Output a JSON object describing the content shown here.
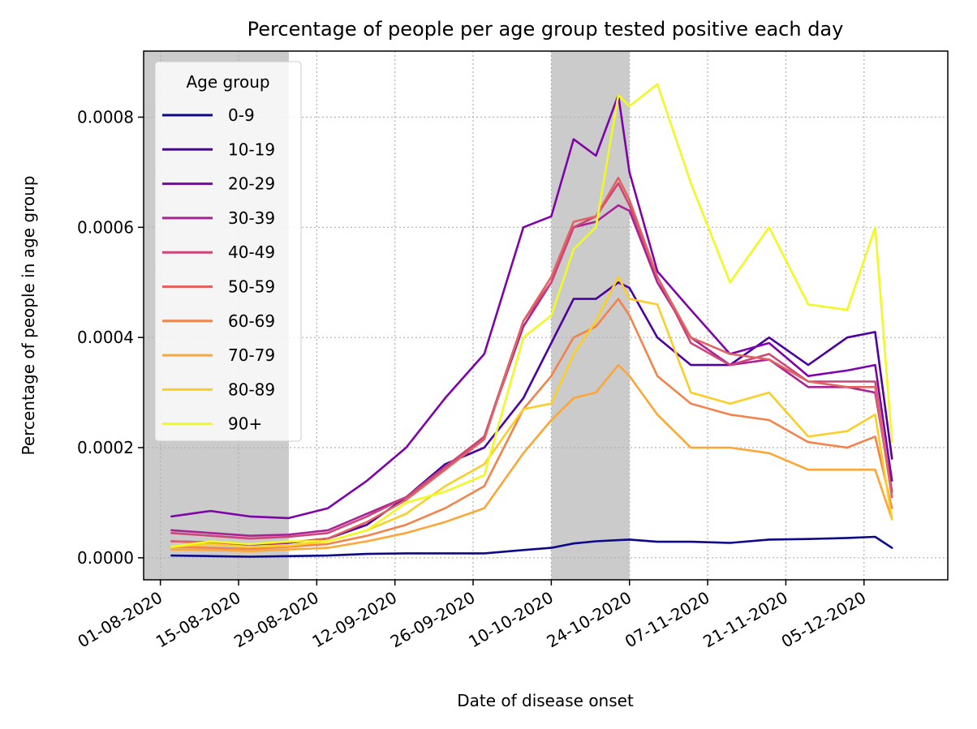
{
  "chart_data": {
    "type": "line",
    "title": "Percentage of people per age group tested positive each day",
    "xlabel": "Date of disease onset",
    "ylabel": "Percentage of people in age group",
    "legend_title": "Age group",
    "legend_position": "upper-left",
    "grid": "dotted",
    "x_start_date": "2020-08-01",
    "xlim": [
      "2020-07-29",
      "2020-12-20"
    ],
    "ylim": [
      -4e-05,
      0.00092
    ],
    "x_ticks": [
      "01-08-2020",
      "15-08-2020",
      "29-08-2020",
      "12-09-2020",
      "26-09-2020",
      "10-10-2020",
      "24-10-2020",
      "07-11-2020",
      "21-11-2020",
      "05-12-2020"
    ],
    "y_ticks": [
      "0.0000",
      "0.0002",
      "0.0004",
      "0.0006",
      "0.0008"
    ],
    "shaded_periods": [
      {
        "start": "2020-07-29",
        "end": "2020-08-24"
      },
      {
        "start": "2020-10-10",
        "end": "2020-10-24"
      }
    ],
    "x": [
      "2020-08-03",
      "2020-08-10",
      "2020-08-17",
      "2020-08-24",
      "2020-08-31",
      "2020-09-07",
      "2020-09-14",
      "2020-09-21",
      "2020-09-28",
      "2020-10-05",
      "2020-10-10",
      "2020-10-14",
      "2020-10-18",
      "2020-10-22",
      "2020-10-24",
      "2020-10-29",
      "2020-11-04",
      "2020-11-11",
      "2020-11-18",
      "2020-11-25",
      "2020-12-02",
      "2020-12-07",
      "2020-12-10"
    ],
    "series": [
      {
        "name": "0-9",
        "color": "#0d0887",
        "values": [
          4e-06,
          3e-06,
          2e-06,
          3e-06,
          4e-06,
          7e-06,
          8e-06,
          8e-06,
          8e-06,
          1.4e-05,
          1.8e-05,
          2.6e-05,
          3e-05,
          3.2e-05,
          3.3e-05,
          2.9e-05,
          2.9e-05,
          2.7e-05,
          3.3e-05,
          3.4e-05,
          3.6e-05,
          3.8e-05,
          1.8e-05
        ]
      },
      {
        "name": "10-19",
        "color": "#4c02a1",
        "values": [
          3e-05,
          2.8e-05,
          2.4e-05,
          2.7e-05,
          3.5e-05,
          6e-05,
          0.00011,
          0.00017,
          0.0002,
          0.00029,
          0.00039,
          0.00047,
          0.00047,
          0.0005,
          0.00049,
          0.0004,
          0.00035,
          0.00035,
          0.0004,
          0.00035,
          0.0004,
          0.00041,
          0.00018
        ]
      },
      {
        "name": "20-29",
        "color": "#7e03a8",
        "values": [
          7.5e-05,
          8.5e-05,
          7.5e-05,
          7.2e-05,
          9e-05,
          0.00014,
          0.0002,
          0.00029,
          0.00037,
          0.0006,
          0.00062,
          0.00076,
          0.00073,
          0.00084,
          0.0007,
          0.00052,
          0.00045,
          0.00037,
          0.00039,
          0.00033,
          0.00034,
          0.00035,
          0.00014
        ]
      },
      {
        "name": "30-39",
        "color": "#a92395",
        "values": [
          5e-05,
          4.5e-05,
          4e-05,
          4.2e-05,
          5e-05,
          8e-05,
          0.00011,
          0.00016,
          0.00022,
          0.00042,
          0.0005,
          0.0006,
          0.00061,
          0.00064,
          0.00063,
          0.0005,
          0.0004,
          0.00035,
          0.00036,
          0.00031,
          0.00031,
          0.0003,
          0.00012
        ]
      },
      {
        "name": "40-49",
        "color": "#cc4778",
        "values": [
          4.5e-05,
          4e-05,
          3.5e-05,
          3.8e-05,
          4.5e-05,
          7.5e-05,
          0.00011,
          0.000165,
          0.00022,
          0.00043,
          0.0005,
          0.0006,
          0.00062,
          0.00068,
          0.00064,
          0.00051,
          0.00039,
          0.00035,
          0.00037,
          0.00032,
          0.00032,
          0.00032,
          0.00011
        ]
      },
      {
        "name": "50-59",
        "color": "#e16462",
        "values": [
          3e-05,
          2.8e-05,
          2.5e-05,
          2.8e-05,
          3.5e-05,
          6.5e-05,
          0.000105,
          0.00016,
          0.000215,
          0.00043,
          0.00051,
          0.00061,
          0.00062,
          0.00069,
          0.00065,
          0.00051,
          0.0004,
          0.00037,
          0.00036,
          0.00032,
          0.00031,
          0.00031,
          0.00011
        ]
      },
      {
        "name": "60-69",
        "color": "#f2844b",
        "values": [
          2e-05,
          1.8e-05,
          1.6e-05,
          2e-05,
          2.5e-05,
          4e-05,
          6e-05,
          9e-05,
          0.00013,
          0.00027,
          0.00033,
          0.0004,
          0.00042,
          0.00047,
          0.00044,
          0.00033,
          0.00028,
          0.00026,
          0.00025,
          0.00021,
          0.0002,
          0.00022,
          9e-05
        ]
      },
      {
        "name": "70-79",
        "color": "#fca636",
        "values": [
          1.5e-05,
          1.4e-05,
          1.2e-05,
          1.5e-05,
          1.8e-05,
          3e-05,
          4.5e-05,
          6.5e-05,
          9e-05,
          0.00019,
          0.00025,
          0.00029,
          0.0003,
          0.00035,
          0.00033,
          0.00026,
          0.0002,
          0.0002,
          0.00019,
          0.00016,
          0.00016,
          0.00016,
          7e-05
        ]
      },
      {
        "name": "80-89",
        "color": "#fcce25",
        "values": [
          2e-05,
          2.5e-05,
          2e-05,
          2.2e-05,
          3e-05,
          5e-05,
          8e-05,
          0.00013,
          0.00017,
          0.00027,
          0.00028,
          0.00037,
          0.00043,
          0.00051,
          0.00047,
          0.00046,
          0.0003,
          0.00028,
          0.0003,
          0.00022,
          0.00023,
          0.00026,
          7e-05
        ]
      },
      {
        "name": "90+",
        "color": "#f0f921",
        "values": [
          2e-05,
          3e-05,
          2.5e-05,
          3e-05,
          3e-05,
          5e-05,
          0.0001,
          0.00012,
          0.00015,
          0.0004,
          0.00044,
          0.00056,
          0.0006,
          0.00084,
          0.00082,
          0.00086,
          0.00068,
          0.0005,
          0.0006,
          0.00046,
          0.00045,
          0.0006,
          0.00021
        ]
      }
    ]
  }
}
